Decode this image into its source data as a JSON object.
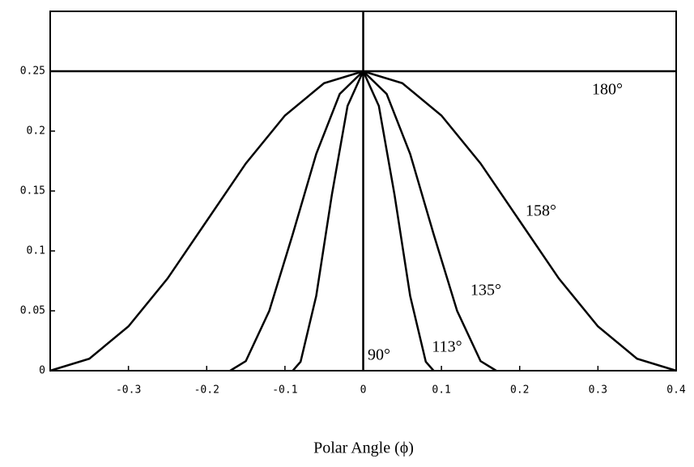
{
  "chart_data": {
    "type": "line",
    "xlabel": "Polar Angle (ϕ)",
    "xlim": [
      -0.4,
      0.4
    ],
    "xticks": [
      -0.3,
      -0.2,
      -0.1,
      0,
      0.1,
      0.2,
      0.3,
      0.4
    ],
    "ylim": [
      0,
      0.3
    ],
    "yticks": [
      0,
      0.05,
      0.1,
      0.15,
      0.2,
      0.25
    ],
    "series": [
      {
        "name": "180°",
        "color": "#000000",
        "x": [
          -0.4,
          0.4
        ],
        "values": [
          0.25,
          0.25
        ]
      },
      {
        "name": "158°",
        "color": "#000000",
        "x": [
          -0.4,
          -0.35,
          -0.3,
          -0.25,
          -0.2,
          -0.15,
          -0.1,
          -0.05,
          0,
          0.05,
          0.1,
          0.15,
          0.2,
          0.25,
          0.3,
          0.35,
          0.4
        ],
        "values": [
          0,
          0.01,
          0.037,
          0.077,
          0.125,
          0.173,
          0.213,
          0.24,
          0.25,
          0.24,
          0.213,
          0.173,
          0.125,
          0.077,
          0.037,
          0.01,
          0
        ]
      },
      {
        "name": "135°",
        "color": "#000000",
        "x": [
          -0.17,
          -0.15,
          -0.12,
          -0.09,
          -0.06,
          -0.03,
          0,
          0.03,
          0.06,
          0.09,
          0.12,
          0.15,
          0.17
        ],
        "values": [
          0,
          0.008,
          0.05,
          0.114,
          0.181,
          0.231,
          0.25,
          0.231,
          0.181,
          0.114,
          0.05,
          0.008,
          0
        ]
      },
      {
        "name": "113°",
        "color": "#000000",
        "x": [
          -0.09,
          -0.08,
          -0.06,
          -0.04,
          -0.02,
          0,
          0.02,
          0.04,
          0.06,
          0.08,
          0.09
        ],
        "values": [
          0,
          0.0075,
          0.0625,
          0.147,
          0.221,
          0.25,
          0.221,
          0.147,
          0.0625,
          0.0075,
          0
        ]
      },
      {
        "name": "90°",
        "color": "#000000",
        "x": [
          0,
          0
        ],
        "values": [
          0,
          0.3
        ]
      }
    ]
  }
}
